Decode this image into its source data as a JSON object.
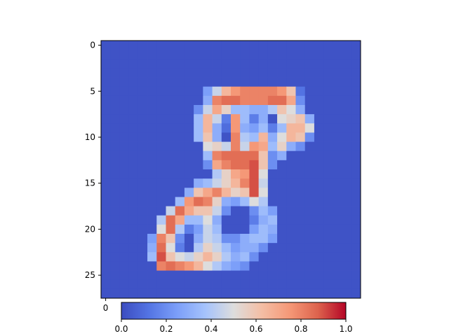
{
  "chart_data": {
    "type": "heatmap",
    "title": "",
    "xlabel": "",
    "ylabel": "",
    "rows": 28,
    "cols": 28,
    "colormap": "coolwarm",
    "vmin": 0.0,
    "vmax": 1.0,
    "background_value": 0.02,
    "y_ticks": [
      0,
      5,
      10,
      15,
      20,
      25
    ],
    "x_ticks": [
      0
    ],
    "colorbar": {
      "placement": "bottom",
      "ticks": [
        0.0,
        0.2,
        0.4,
        0.6,
        0.8,
        1.0
      ],
      "tick_labels": [
        "0.0",
        "0.2",
        "0.4",
        "0.6",
        "0.8",
        "1.0"
      ]
    },
    "cells": [
      [
        5,
        12,
        0.45
      ],
      [
        5,
        13,
        0.65
      ],
      [
        5,
        14,
        0.75
      ],
      [
        5,
        15,
        0.8
      ],
      [
        5,
        16,
        0.8
      ],
      [
        5,
        17,
        0.8
      ],
      [
        5,
        18,
        0.8
      ],
      [
        5,
        19,
        0.75
      ],
      [
        5,
        20,
        0.6
      ],
      [
        5,
        11,
        0.25
      ],
      [
        5,
        21,
        0.12
      ],
      [
        6,
        11,
        0.3
      ],
      [
        6,
        12,
        0.8
      ],
      [
        6,
        13,
        0.85
      ],
      [
        6,
        14,
        0.85
      ],
      [
        6,
        15,
        0.8
      ],
      [
        6,
        16,
        0.8
      ],
      [
        6,
        17,
        0.8
      ],
      [
        6,
        18,
        0.85
      ],
      [
        6,
        19,
        0.85
      ],
      [
        6,
        20,
        0.7
      ],
      [
        6,
        21,
        0.2
      ],
      [
        7,
        10,
        0.2
      ],
      [
        7,
        11,
        0.45
      ],
      [
        7,
        12,
        0.7
      ],
      [
        7,
        13,
        0.55
      ],
      [
        7,
        14,
        0.35
      ],
      [
        7,
        15,
        0.35
      ],
      [
        7,
        16,
        0.3
      ],
      [
        7,
        17,
        0.3
      ],
      [
        7,
        18,
        0.4
      ],
      [
        7,
        19,
        0.6
      ],
      [
        7,
        20,
        0.5
      ],
      [
        7,
        21,
        0.3
      ],
      [
        8,
        10,
        0.35
      ],
      [
        8,
        11,
        0.65
      ],
      [
        8,
        12,
        0.45
      ],
      [
        8,
        13,
        0.15
      ],
      [
        8,
        14,
        0.75
      ],
      [
        8,
        15,
        0.35
      ],
      [
        8,
        16,
        0.15
      ],
      [
        8,
        17,
        0.3
      ],
      [
        8,
        19,
        0.5
      ],
      [
        8,
        20,
        0.55
      ],
      [
        8,
        21,
        0.6
      ],
      [
        8,
        22,
        0.3
      ],
      [
        9,
        10,
        0.35
      ],
      [
        9,
        11,
        0.65
      ],
      [
        9,
        12,
        0.3
      ],
      [
        9,
        13,
        0.1
      ],
      [
        9,
        14,
        0.75
      ],
      [
        9,
        15,
        0.3
      ],
      [
        9,
        16,
        0.25
      ],
      [
        9,
        17,
        0.35
      ],
      [
        9,
        18,
        0.15
      ],
      [
        9,
        19,
        0.35
      ],
      [
        9,
        20,
        0.65
      ],
      [
        9,
        21,
        0.65
      ],
      [
        9,
        22,
        0.5
      ],
      [
        10,
        10,
        0.35
      ],
      [
        10,
        11,
        0.6
      ],
      [
        10,
        12,
        0.3
      ],
      [
        10,
        14,
        0.8
      ],
      [
        10,
        15,
        0.4
      ],
      [
        10,
        16,
        0.35
      ],
      [
        10,
        17,
        0.65
      ],
      [
        10,
        18,
        0.3
      ],
      [
        10,
        19,
        0.5
      ],
      [
        10,
        20,
        0.65
      ],
      [
        10,
        21,
        0.6
      ],
      [
        10,
        22,
        0.2
      ],
      [
        11,
        11,
        0.5
      ],
      [
        11,
        12,
        0.55
      ],
      [
        11,
        13,
        0.45
      ],
      [
        11,
        14,
        0.8
      ],
      [
        11,
        15,
        0.45
      ],
      [
        11,
        16,
        0.75
      ],
      [
        11,
        17,
        0.7
      ],
      [
        11,
        18,
        0.35
      ],
      [
        11,
        19,
        0.55
      ],
      [
        11,
        20,
        0.3
      ],
      [
        11,
        21,
        0.2
      ],
      [
        12,
        11,
        0.35
      ],
      [
        12,
        12,
        0.8
      ],
      [
        12,
        13,
        0.85
      ],
      [
        12,
        14,
        0.85
      ],
      [
        12,
        15,
        0.85
      ],
      [
        12,
        16,
        0.85
      ],
      [
        12,
        17,
        0.6
      ],
      [
        12,
        18,
        0.2
      ],
      [
        12,
        19,
        0.3
      ],
      [
        13,
        11,
        0.2
      ],
      [
        13,
        12,
        0.7
      ],
      [
        13,
        13,
        0.8
      ],
      [
        13,
        14,
        0.85
      ],
      [
        13,
        15,
        0.85
      ],
      [
        13,
        16,
        0.9
      ],
      [
        13,
        17,
        0.6
      ],
      [
        13,
        18,
        0.2
      ],
      [
        14,
        12,
        0.4
      ],
      [
        14,
        13,
        0.55
      ],
      [
        14,
        14,
        0.7
      ],
      [
        14,
        15,
        0.75
      ],
      [
        14,
        16,
        0.9
      ],
      [
        14,
        17,
        0.5
      ],
      [
        15,
        10,
        0.3
      ],
      [
        15,
        11,
        0.35
      ],
      [
        15,
        12,
        0.45
      ],
      [
        15,
        13,
        0.55
      ],
      [
        15,
        14,
        0.65
      ],
      [
        15,
        15,
        0.8
      ],
      [
        15,
        16,
        0.9
      ],
      [
        15,
        17,
        0.45
      ],
      [
        16,
        9,
        0.3
      ],
      [
        16,
        10,
        0.6
      ],
      [
        16,
        11,
        0.7
      ],
      [
        16,
        12,
        0.8
      ],
      [
        16,
        13,
        0.65
      ],
      [
        16,
        14,
        0.55
      ],
      [
        16,
        15,
        0.6
      ],
      [
        16,
        16,
        0.9
      ],
      [
        16,
        17,
        0.5
      ],
      [
        17,
        8,
        0.35
      ],
      [
        17,
        9,
        0.75
      ],
      [
        17,
        10,
        0.85
      ],
      [
        17,
        11,
        0.8
      ],
      [
        17,
        12,
        0.55
      ],
      [
        17,
        13,
        0.3
      ],
      [
        17,
        14,
        0.25
      ],
      [
        17,
        15,
        0.35
      ],
      [
        17,
        16,
        0.5
      ],
      [
        17,
        17,
        0.4
      ],
      [
        18,
        7,
        0.45
      ],
      [
        18,
        8,
        0.85
      ],
      [
        18,
        9,
        0.7
      ],
      [
        18,
        10,
        0.6
      ],
      [
        18,
        11,
        0.6
      ],
      [
        18,
        12,
        0.45
      ],
      [
        18,
        13,
        0.2
      ],
      [
        18,
        16,
        0.2
      ],
      [
        18,
        17,
        0.35
      ],
      [
        18,
        18,
        0.25
      ],
      [
        19,
        6,
        0.4
      ],
      [
        19,
        7,
        0.85
      ],
      [
        19,
        8,
        0.7
      ],
      [
        19,
        9,
        0.35
      ],
      [
        19,
        10,
        0.35
      ],
      [
        19,
        11,
        0.5
      ],
      [
        19,
        12,
        0.3
      ],
      [
        19,
        16,
        0.15
      ],
      [
        19,
        17,
        0.3
      ],
      [
        19,
        18,
        0.35
      ],
      [
        20,
        6,
        0.5
      ],
      [
        20,
        7,
        0.85
      ],
      [
        20,
        8,
        0.4
      ],
      [
        20,
        9,
        0.15
      ],
      [
        20,
        10,
        0.25
      ],
      [
        20,
        11,
        0.45
      ],
      [
        20,
        12,
        0.35
      ],
      [
        20,
        16,
        0.25
      ],
      [
        20,
        17,
        0.35
      ],
      [
        20,
        18,
        0.3
      ],
      [
        21,
        5,
        0.25
      ],
      [
        21,
        6,
        0.8
      ],
      [
        21,
        7,
        0.6
      ],
      [
        21,
        8,
        0.2
      ],
      [
        21,
        10,
        0.3
      ],
      [
        21,
        11,
        0.45
      ],
      [
        21,
        12,
        0.4
      ],
      [
        21,
        13,
        0.2
      ],
      [
        21,
        14,
        0.2
      ],
      [
        21,
        15,
        0.3
      ],
      [
        21,
        16,
        0.35
      ],
      [
        21,
        17,
        0.35
      ],
      [
        21,
        18,
        0.25
      ],
      [
        22,
        5,
        0.3
      ],
      [
        22,
        6,
        0.85
      ],
      [
        22,
        7,
        0.5
      ],
      [
        22,
        8,
        0.15
      ],
      [
        22,
        10,
        0.4
      ],
      [
        22,
        11,
        0.55
      ],
      [
        22,
        12,
        0.45
      ],
      [
        22,
        13,
        0.35
      ],
      [
        22,
        14,
        0.25
      ],
      [
        22,
        15,
        0.3
      ],
      [
        22,
        16,
        0.3
      ],
      [
        22,
        17,
        0.2
      ],
      [
        23,
        5,
        0.35
      ],
      [
        23,
        6,
        0.9
      ],
      [
        23,
        7,
        0.6
      ],
      [
        23,
        8,
        0.5
      ],
      [
        23,
        9,
        0.45
      ],
      [
        23,
        10,
        0.55
      ],
      [
        23,
        11,
        0.65
      ],
      [
        23,
        12,
        0.55
      ],
      [
        23,
        13,
        0.4
      ],
      [
        23,
        14,
        0.3
      ],
      [
        23,
        15,
        0.35
      ],
      [
        23,
        16,
        0.2
      ],
      [
        24,
        6,
        0.8
      ],
      [
        24,
        7,
        0.85
      ],
      [
        24,
        8,
        0.8
      ],
      [
        24,
        9,
        0.75
      ],
      [
        24,
        10,
        0.65
      ],
      [
        24,
        11,
        0.5
      ],
      [
        24,
        12,
        0.4
      ],
      [
        24,
        13,
        0.3
      ],
      [
        24,
        14,
        0.25
      ],
      [
        24,
        15,
        0.2
      ]
    ]
  }
}
